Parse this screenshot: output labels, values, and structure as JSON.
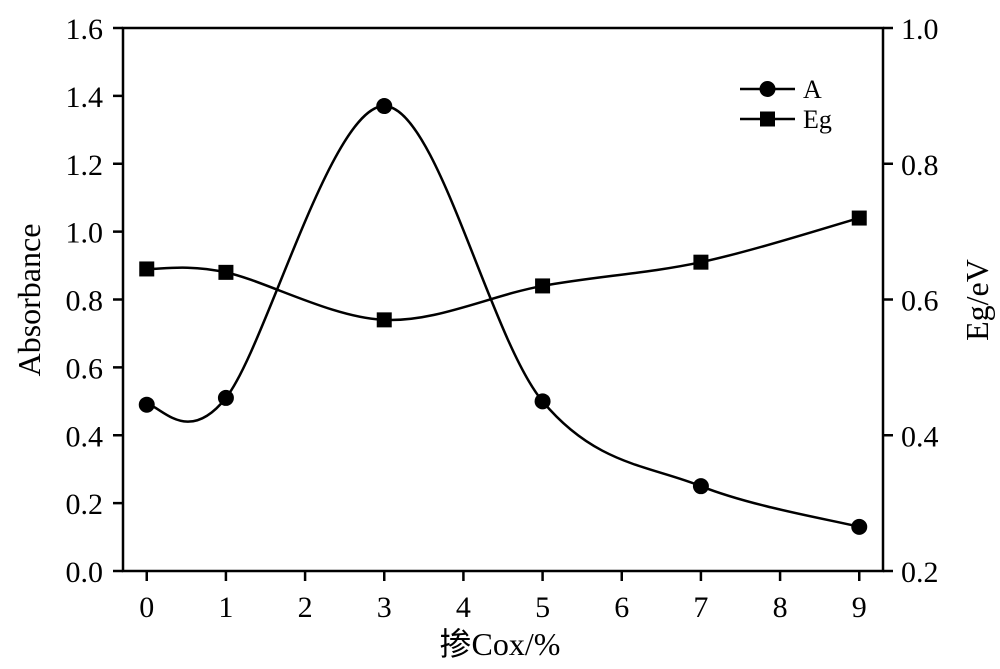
{
  "chart_data": {
    "type": "line",
    "x": [
      0,
      1,
      3,
      5,
      7,
      9
    ],
    "xticks": [
      0,
      1,
      2,
      3,
      4,
      5,
      6,
      7,
      8,
      9
    ],
    "xlim": [
      -0.3,
      9.3
    ],
    "xlabel": "掺Cox/%",
    "ylabel": "Absorbance",
    "ylim": [
      0.0,
      1.6
    ],
    "yticks": [
      0.0,
      0.2,
      0.4,
      0.6,
      0.8,
      1.0,
      1.2,
      1.4,
      1.6
    ],
    "y2label": "Eg/eV",
    "y2lim": [
      0.2,
      1.0
    ],
    "y2ticks": [
      0.2,
      0.4,
      0.6,
      0.8,
      1.0
    ],
    "series": [
      {
        "name": "A",
        "axis": "left",
        "marker": "circle",
        "values": [
          0.49,
          0.51,
          1.37,
          0.5,
          0.25,
          0.13
        ]
      },
      {
        "name": "Eg",
        "axis": "right",
        "marker": "square",
        "values": [
          0.645,
          0.64,
          0.57,
          0.62,
          0.655,
          0.72
        ]
      }
    ],
    "legend": "top-right",
    "grid": false,
    "color": "#000000"
  }
}
